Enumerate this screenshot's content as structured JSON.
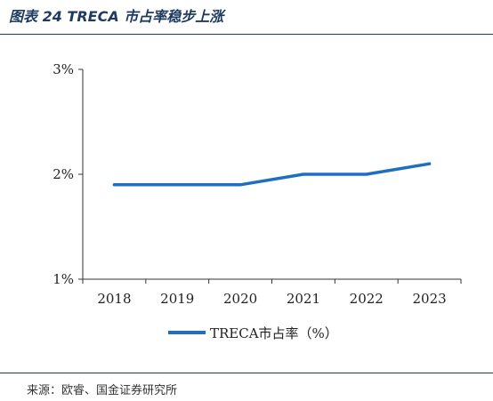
{
  "figure": {
    "title": "图表 24 TRECA 市占率稳步上涨",
    "source": "来源：欧睿、国金证券研究所"
  },
  "colors": {
    "series_line": "#1f6fc0",
    "rule": "#1f3a5f",
    "axis": "#333333"
  },
  "chart_data": {
    "type": "line",
    "title": "",
    "xlabel": "",
    "ylabel": "",
    "categories": [
      "2018",
      "2019",
      "2020",
      "2021",
      "2022",
      "2023"
    ],
    "series": [
      {
        "name": "TRECA市占率（%）",
        "values": [
          1.9,
          1.9,
          1.9,
          2.0,
          2.0,
          2.1
        ]
      }
    ],
    "ylim": [
      1,
      3
    ],
    "yticks": [
      1,
      2,
      3
    ],
    "ytick_labels": [
      "1%",
      "2%",
      "3%"
    ],
    "grid": false,
    "legend_position": "bottom-center"
  }
}
